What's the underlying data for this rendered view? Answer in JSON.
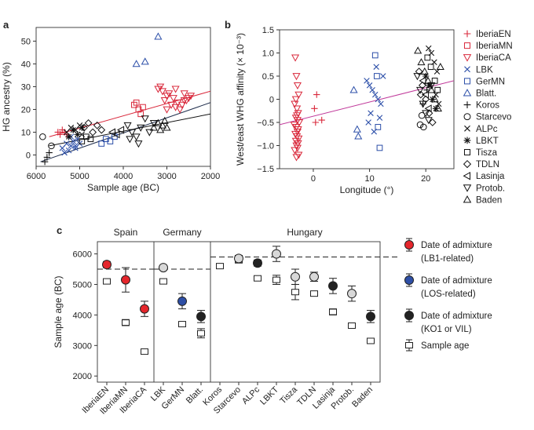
{
  "chart_data": [
    {
      "panel": "a",
      "type": "scatter",
      "xlabel": "Sample age (BC)",
      "ylabel": "HG ancestry (%)",
      "xlim": [
        6000,
        2000
      ],
      "ylim": [
        -5,
        56
      ],
      "xticks": [
        6000,
        5000,
        4000,
        3000,
        2000
      ],
      "yticks": [
        0,
        10,
        20,
        30,
        40,
        50
      ],
      "regression_lines": [
        {
          "color": "#d9283b",
          "x": [
            5700,
            2000
          ],
          "y": [
            8,
            28
          ]
        },
        {
          "color": "#1d2b4a",
          "x": [
            5900,
            2000
          ],
          "y": [
            -3,
            23
          ]
        },
        {
          "color": "#111111",
          "x": [
            5700,
            2000
          ],
          "y": [
            4,
            18
          ]
        }
      ],
      "series": [
        {
          "name": "IberiaEN",
          "marker": "plus",
          "color": "#d9283b",
          "x": [
            5500,
            5450,
            5400,
            5350,
            5300
          ],
          "y": [
            10,
            9,
            11,
            10,
            9
          ]
        },
        {
          "name": "IberiaMN",
          "marker": "square",
          "color": "#d9283b",
          "x": [
            3750,
            3700,
            3650,
            3600,
            3550
          ],
          "y": [
            22,
            23,
            20,
            18,
            21
          ]
        },
        {
          "name": "IberiaCA",
          "marker": "triangle-down",
          "color": "#d9283b",
          "x": [
            3200,
            3100,
            3000,
            2900,
            2800,
            2700,
            2600,
            2500,
            2450,
            3150,
            3050,
            2950,
            2850,
            2750,
            2650,
            2550,
            3000,
            2800,
            2600
          ],
          "y": [
            29,
            28,
            26,
            22,
            21,
            20,
            24,
            25,
            26,
            30,
            24,
            27,
            25,
            23,
            22,
            24,
            20,
            29,
            27
          ]
        },
        {
          "name": "LBK",
          "marker": "x",
          "color": "#2b4ea8",
          "x": [
            5400,
            5300,
            5250,
            5200,
            5150,
            5100,
            5050,
            5000,
            5350,
            5200,
            5100
          ],
          "y": [
            3,
            5,
            2,
            4,
            6,
            3,
            7,
            5,
            1,
            8,
            4
          ]
        },
        {
          "name": "GerMN",
          "marker": "square",
          "color": "#2b4ea8",
          "x": [
            4500,
            4400,
            4300,
            4200
          ],
          "y": [
            5,
            7,
            6,
            8
          ]
        },
        {
          "name": "Blatt.",
          "marker": "triangle-up",
          "color": "#2b4ea8",
          "x": [
            3700,
            3500,
            3200
          ],
          "y": [
            40,
            41,
            52
          ]
        },
        {
          "name": "Koros",
          "marker": "plus",
          "color": "#111111",
          "x": [
            5800,
            5750,
            5700
          ],
          "y": [
            -3,
            -1,
            1
          ]
        },
        {
          "name": "Starcevo",
          "marker": "circle",
          "color": "#111111",
          "x": [
            5850,
            5650
          ],
          "y": [
            8,
            4
          ]
        },
        {
          "name": "ALPc",
          "marker": "x",
          "color": "#111111",
          "x": [
            5300,
            5200,
            5100,
            5000,
            4950
          ],
          "y": [
            10,
            12,
            11,
            13,
            9
          ]
        },
        {
          "name": "LBKT",
          "marker": "asterisk",
          "color": "#111111",
          "x": [
            5250,
            5150,
            5050,
            4950
          ],
          "y": [
            8,
            11,
            9,
            12
          ]
        },
        {
          "name": "Tisza",
          "marker": "square",
          "color": "#111111",
          "x": [
            4950,
            4850,
            4750
          ],
          "y": [
            6,
            8,
            7
          ]
        },
        {
          "name": "TDLN",
          "marker": "diamond",
          "color": "#111111",
          "x": [
            4900,
            4800,
            4700,
            4600,
            4500
          ],
          "y": [
            12,
            14,
            10,
            13,
            11
          ]
        },
        {
          "name": "Lasinja",
          "marker": "triangle-left",
          "color": "#111111",
          "x": [
            4250,
            4150,
            4050
          ],
          "y": [
            10,
            9,
            11
          ]
        },
        {
          "name": "Protob.",
          "marker": "triangle-down",
          "color": "#111111",
          "x": [
            3900,
            3800,
            3700,
            3600,
            3500,
            3400,
            3300,
            3850,
            3650
          ],
          "y": [
            13,
            10,
            8,
            12,
            16,
            10,
            14,
            7,
            5
          ]
        },
        {
          "name": "Baden",
          "marker": "triangle-up",
          "color": "#111111",
          "x": [
            3300,
            3200,
            3150,
            3100,
            3050,
            3000
          ],
          "y": [
            12,
            14,
            11,
            13,
            15,
            12
          ]
        }
      ]
    },
    {
      "panel": "b",
      "type": "scatter",
      "xlabel": "Longitude (°)",
      "ylabel": "West/east WHG affinity (× 10⁻³)",
      "xlim": [
        -6,
        25
      ],
      "ylim": [
        -1.5,
        1.5
      ],
      "xticks": [
        0,
        10,
        20
      ],
      "yticks": [
        -1.5,
        -1.0,
        -0.5,
        0,
        0.5,
        1.0,
        1.5
      ],
      "ytick_labels": [
        "−1.5",
        "−1.0",
        "−0.5",
        "0",
        "0.5",
        "1.0",
        "1.5"
      ],
      "regression_lines": [
        {
          "color": "#c0399a",
          "x": [
            -6,
            25
          ],
          "y": [
            -0.55,
            0.4
          ]
        }
      ],
      "series": [
        {
          "name": "IberiaEN",
          "marker": "plus",
          "color": "#d9283b",
          "x": [
            0.2,
            0.4,
            0.6,
            1.5
          ],
          "y": [
            -0.2,
            -0.5,
            0.1,
            -0.45
          ]
        },
        {
          "name": "IberiaCA",
          "marker": "triangle-down",
          "color": "#d9283b",
          "x": [
            -3.2,
            -3.0,
            -2.8,
            -2.6,
            -3.3,
            -2.9,
            -2.7,
            -3.1,
            -2.5,
            -3.4,
            -3.0,
            -2.8,
            -3.2,
            -2.9,
            -2.6,
            -3.1,
            -2.7,
            -3.0,
            -2.8,
            -3.3,
            -2.6,
            -3.0,
            -2.9,
            -3.1,
            -2.7,
            -2.8
          ],
          "y": [
            0.9,
            0.5,
            0.3,
            0.1,
            -0.1,
            -0.2,
            -0.3,
            -0.4,
            -0.5,
            -0.55,
            -0.6,
            -0.7,
            -0.75,
            -0.8,
            -0.85,
            -0.9,
            -0.95,
            -1.0,
            -1.05,
            -1.1,
            -1.2,
            -1.25,
            -0.35,
            0.0,
            -0.65,
            -0.45
          ]
        },
        {
          "name": "LBK",
          "marker": "x",
          "color": "#2b4ea8",
          "x": [
            9.5,
            10.0,
            10.5,
            11.0,
            11.5,
            12.0,
            10.2,
            11.8,
            9.8,
            12.4,
            10.8,
            11.2
          ],
          "y": [
            0.4,
            0.3,
            0.2,
            0.1,
            0.0,
            -0.1,
            -0.3,
            -0.4,
            -0.5,
            0.5,
            -0.7,
            0.7
          ]
        },
        {
          "name": "GerMN",
          "marker": "square",
          "color": "#2b4ea8",
          "x": [
            11.0,
            11.3,
            11.5,
            11.8
          ],
          "y": [
            0.95,
            0.5,
            -0.6,
            -1.05
          ]
        },
        {
          "name": "Blatt.",
          "marker": "triangle-up",
          "color": "#2b4ea8",
          "x": [
            7.2,
            7.8,
            8.0
          ],
          "y": [
            0.2,
            -0.65,
            -0.8
          ]
        },
        {
          "name": "Koros",
          "marker": "plus",
          "color": "#111111",
          "x": [
            19.5,
            20.2
          ],
          "y": [
            -0.1,
            0.2
          ]
        },
        {
          "name": "Starcevo",
          "marker": "circle",
          "color": "#111111",
          "x": [
            19.0,
            19.3,
            19.6
          ],
          "y": [
            -0.55,
            -0.35,
            -0.6
          ]
        },
        {
          "name": "ALPc",
          "marker": "x",
          "color": "#111111",
          "x": [
            20.5,
            21.0,
            21.5,
            22.0,
            20.8,
            21.8,
            22.3
          ],
          "y": [
            1.1,
            1.0,
            0.8,
            0.6,
            0.3,
            0.1,
            -0.1
          ]
        },
        {
          "name": "LBKT",
          "marker": "asterisk",
          "color": "#111111",
          "x": [
            20.0,
            20.6,
            21.2,
            21.8
          ],
          "y": [
            0.5,
            0.3,
            0.0,
            -0.2
          ]
        },
        {
          "name": "Tisza",
          "marker": "square",
          "color": "#111111",
          "x": [
            20.3,
            20.9,
            21.6,
            22.1
          ],
          "y": [
            0.9,
            0.7,
            0.4,
            0.2
          ]
        },
        {
          "name": "TDLN",
          "marker": "diamond",
          "color": "#111111",
          "x": [
            18.8,
            19.4,
            20.0,
            20.6,
            21.2,
            19.1
          ],
          "y": [
            0.6,
            0.3,
            0.0,
            -0.3,
            -0.5,
            0.1
          ]
        },
        {
          "name": "Lasinja",
          "marker": "triangle-left",
          "color": "#111111",
          "x": [
            19.5,
            20.0,
            20.5
          ],
          "y": [
            0.4,
            0.1,
            -0.2
          ]
        },
        {
          "name": "Protob.",
          "marker": "triangle-down",
          "color": "#111111",
          "x": [
            18.5,
            19.0,
            19.5,
            20.0,
            20.5,
            21.0
          ],
          "y": [
            0.5,
            0.2,
            -0.1,
            -0.3,
            -0.45,
            0.3
          ]
        },
        {
          "name": "Baden",
          "marker": "triangle-up",
          "color": "#111111",
          "x": [
            18.6,
            19.2,
            19.8,
            20.4,
            21.0,
            21.6,
            22.2,
            22.6
          ],
          "y": [
            1.05,
            0.8,
            0.6,
            0.4,
            0.2,
            0.0,
            -0.2,
            0.7
          ]
        }
      ]
    },
    {
      "panel": "c",
      "type": "scatter",
      "ylabel": "Sample age (BC)",
      "ylim": [
        1800,
        6400
      ],
      "yticks": [
        2000,
        3000,
        4000,
        5000,
        6000
      ],
      "reference_line": 5500,
      "reference_line_hungary": 5900,
      "groups": [
        {
          "label": "Spain",
          "from": 0,
          "to": 2
        },
        {
          "label": "Germany",
          "from": 3,
          "to": 5
        },
        {
          "label": "Hungary",
          "from": 6,
          "to": 15
        }
      ],
      "categories": [
        "IberiaEN",
        "IberiaMN",
        "IberiaCA",
        "LBK",
        "GerMN",
        "Blatt.",
        "Koros",
        "Starcevo",
        "ALPc",
        "LBKT",
        "Tisza",
        "TDLN",
        "Lasinja",
        "Protob.",
        "Baden"
      ],
      "admixture": [
        {
          "value": 5650,
          "err": 100,
          "fill": "#e5262c"
        },
        {
          "value": 5150,
          "err": 400,
          "fill": "#e5262c"
        },
        {
          "value": 4200,
          "err": 250,
          "fill": "#e5262c"
        },
        {
          "value": 5550,
          "err": 80,
          "fill": "#d8d8d8"
        },
        {
          "value": 4450,
          "err": 250,
          "fill": "#2e4fa6"
        },
        {
          "value": 3950,
          "err": 200,
          "fill": "#222222"
        },
        null,
        {
          "value": 5850,
          "err": 100,
          "fill": "#d8d8d8"
        },
        {
          "value": 5700,
          "err": 100,
          "fill": "#222222"
        },
        {
          "value": 6000,
          "err": 250,
          "fill": "#d8d8d8"
        },
        {
          "value": 5250,
          "err": 250,
          "fill": "#d8d8d8"
        },
        {
          "value": 5250,
          "err": 150,
          "fill": "#d8d8d8"
        },
        {
          "value": 4950,
          "err": 250,
          "fill": "#222222"
        },
        {
          "value": 4700,
          "err": 250,
          "fill": "#d8d8d8"
        },
        {
          "value": 3950,
          "err": 200,
          "fill": "#222222"
        }
      ],
      "sample_age": [
        {
          "value": 5100,
          "err": 50
        },
        {
          "value": 3750,
          "err": 100
        },
        {
          "value": 2800,
          "err": 50
        },
        {
          "value": 5100,
          "err": 50
        },
        {
          "value": 3700,
          "err": 50
        },
        {
          "value": 3400,
          "err": 150
        },
        {
          "value": 5600,
          "err": 50
        },
        {
          "value": 5800,
          "err": 100
        },
        {
          "value": 5200,
          "err": 50
        },
        {
          "value": 5150,
          "err": 150
        },
        {
          "value": 4750,
          "err": 250
        },
        {
          "value": 4700,
          "err": 50
        },
        {
          "value": 4100,
          "err": 100
        },
        {
          "value": 3650,
          "err": 50
        },
        {
          "value": 3150,
          "err": 50
        }
      ],
      "legend": [
        {
          "marker": "circle",
          "fill": "#e5262c",
          "line1": "Date of admixture",
          "line2": "(LB1-related)"
        },
        {
          "marker": "circle",
          "fill": "#2e4fa6",
          "line1": "Date of admixture",
          "line2": "(LOS-related)"
        },
        {
          "marker": "circle",
          "fill": "#222222",
          "line1": "Date of admixture",
          "line2": "(KO1 or VIL)"
        },
        {
          "marker": "square",
          "fill": "#ffffff",
          "line1": "Sample age",
          "line2": ""
        }
      ]
    }
  ],
  "legend_ab": [
    {
      "name": "IberiaEN",
      "marker": "plus",
      "color": "#d9283b"
    },
    {
      "name": "IberiaMN",
      "marker": "square",
      "color": "#d9283b"
    },
    {
      "name": "IberiaCA",
      "marker": "triangle-down",
      "color": "#d9283b"
    },
    {
      "name": "LBK",
      "marker": "x",
      "color": "#2b4ea8"
    },
    {
      "name": "GerMN",
      "marker": "square",
      "color": "#2b4ea8"
    },
    {
      "name": "Blatt.",
      "marker": "triangle-up",
      "color": "#2b4ea8"
    },
    {
      "name": "Koros",
      "marker": "plus",
      "color": "#111111"
    },
    {
      "name": "Starcevo",
      "marker": "circle",
      "color": "#111111"
    },
    {
      "name": "ALPc",
      "marker": "x",
      "color": "#111111"
    },
    {
      "name": "LBKT",
      "marker": "asterisk",
      "color": "#111111"
    },
    {
      "name": "Tisza",
      "marker": "square",
      "color": "#111111"
    },
    {
      "name": "TDLN",
      "marker": "diamond",
      "color": "#111111"
    },
    {
      "name": "Lasinja",
      "marker": "triangle-left",
      "color": "#111111"
    },
    {
      "name": "Protob.",
      "marker": "triangle-down",
      "color": "#111111"
    },
    {
      "name": "Baden",
      "marker": "triangle-up",
      "color": "#111111"
    }
  ],
  "panel_labels": {
    "a": "a",
    "b": "b",
    "c": "c"
  }
}
